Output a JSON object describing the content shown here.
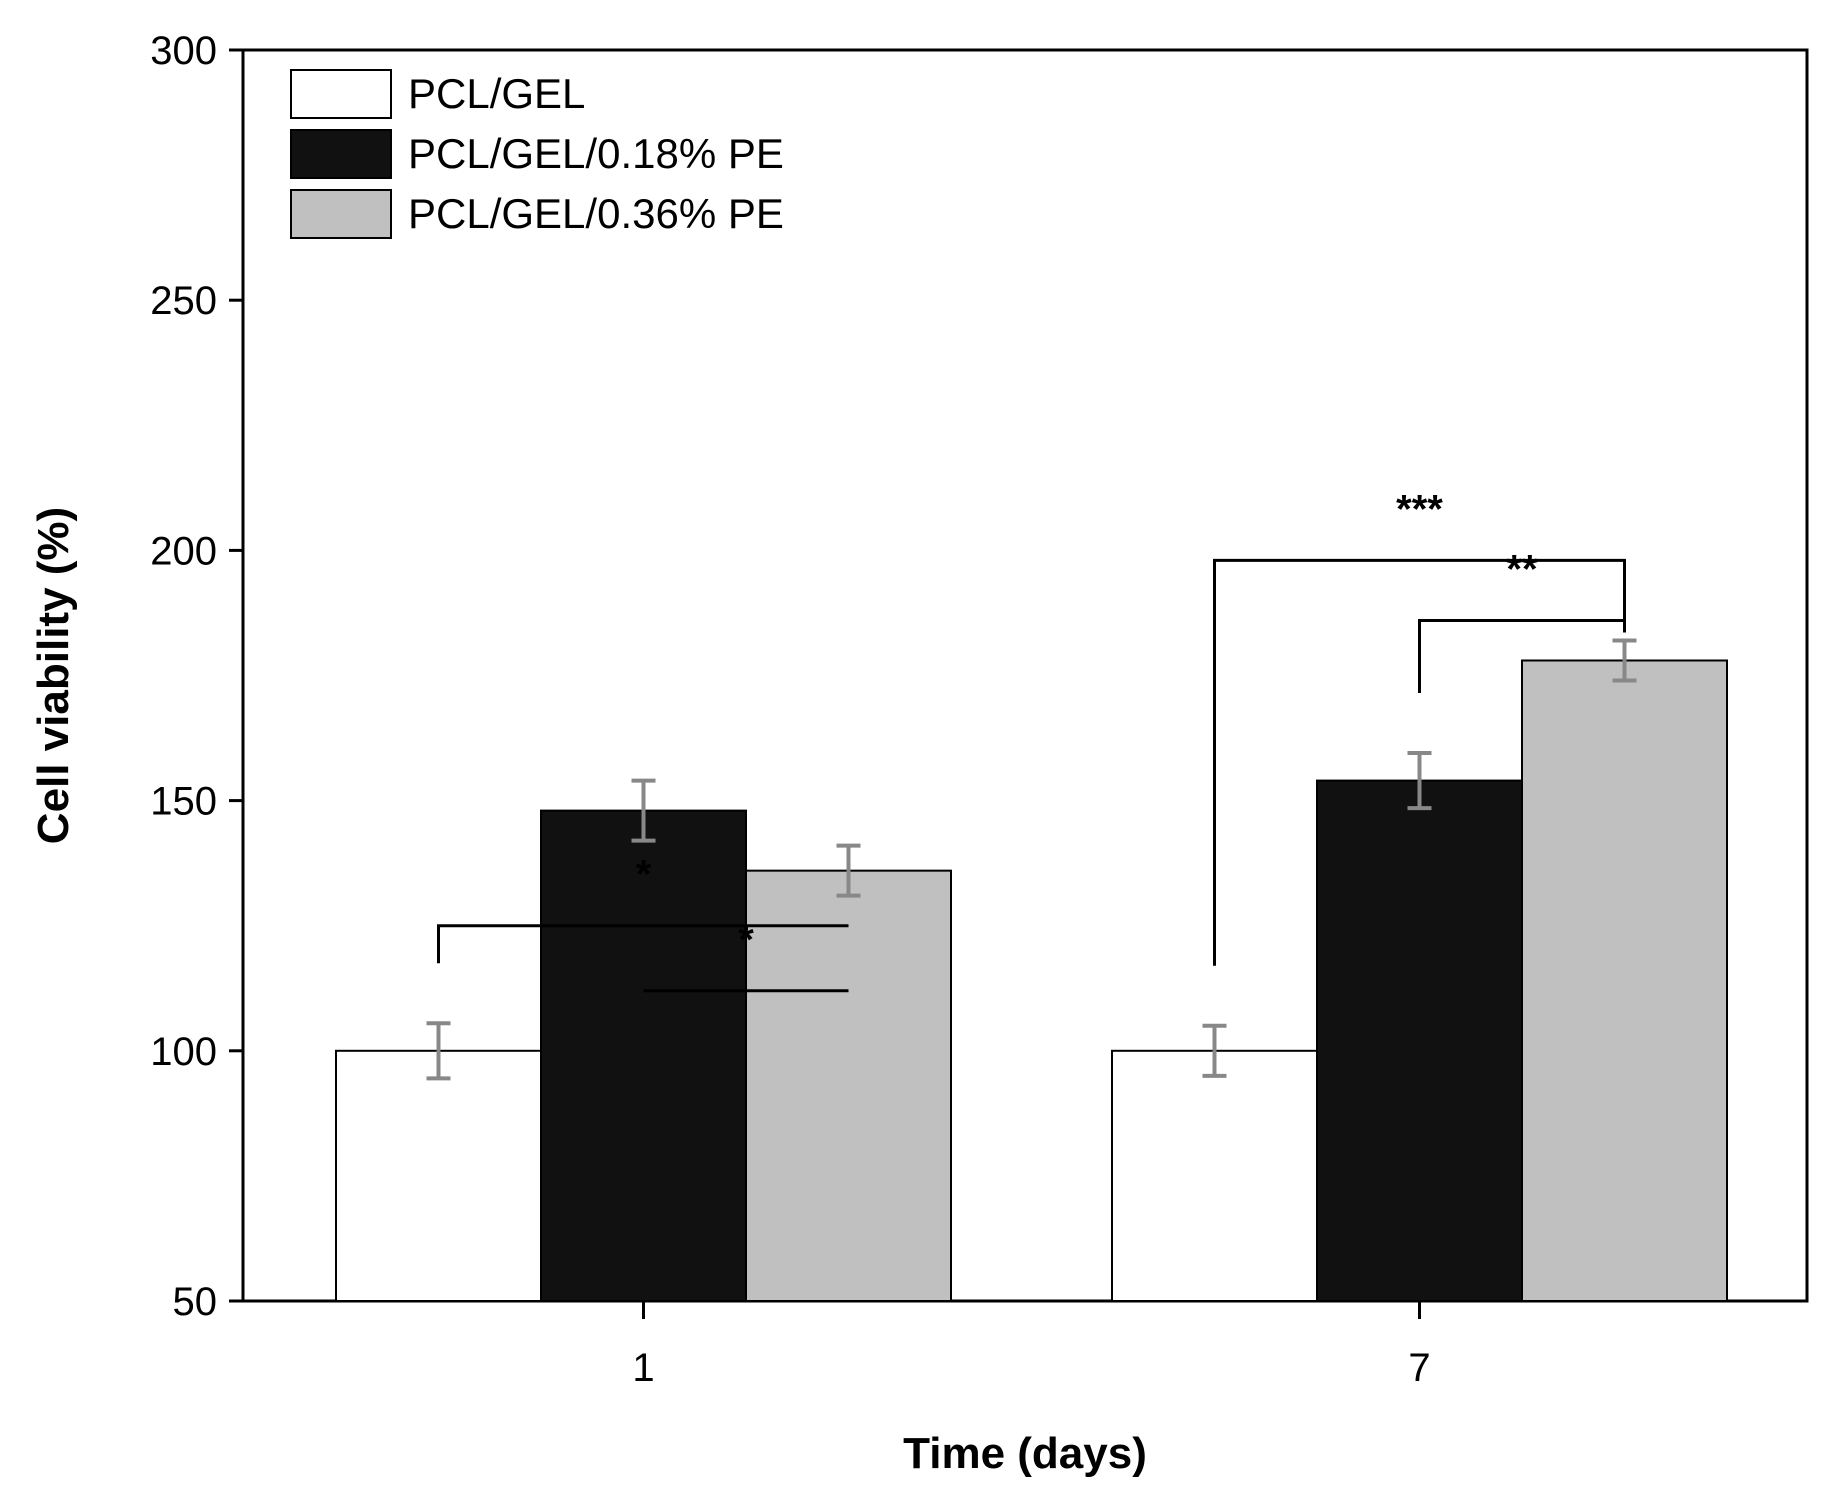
{
  "chart_data": {
    "type": "bar",
    "title": "",
    "xlabel": "Time (days)",
    "ylabel": "Cell viability (%)",
    "categories": [
      "1",
      "7"
    ],
    "ylim": [
      50,
      300
    ],
    "yticks": [
      50,
      100,
      150,
      200,
      250,
      300
    ],
    "legend_position": "top-left",
    "series": [
      {
        "name": "PCL/GEL",
        "color": "#ffffff",
        "values": [
          100,
          100
        ],
        "errors": [
          5.5,
          5
        ]
      },
      {
        "name": "PCL/GEL/0.18% PE",
        "color": "#111111",
        "values": [
          148,
          154
        ],
        "errors": [
          6,
          5.5
        ]
      },
      {
        "name": "PCL/GEL/0.36% PE",
        "color": "#c0c0c0",
        "values": [
          136,
          178
        ],
        "errors": [
          5,
          4
        ]
      }
    ],
    "significance": [
      {
        "category": 0,
        "from_series": 0,
        "to_series": 2,
        "label": "*",
        "level": 125
      },
      {
        "category": 0,
        "from_series": 1,
        "to_series": 2,
        "label": "*",
        "level": 112
      },
      {
        "category": 1,
        "from_series": 0,
        "to_series": 2,
        "label": "***",
        "level": 198
      },
      {
        "category": 1,
        "from_series": 1,
        "to_series": 2,
        "label": "**",
        "level": 186
      }
    ]
  }
}
